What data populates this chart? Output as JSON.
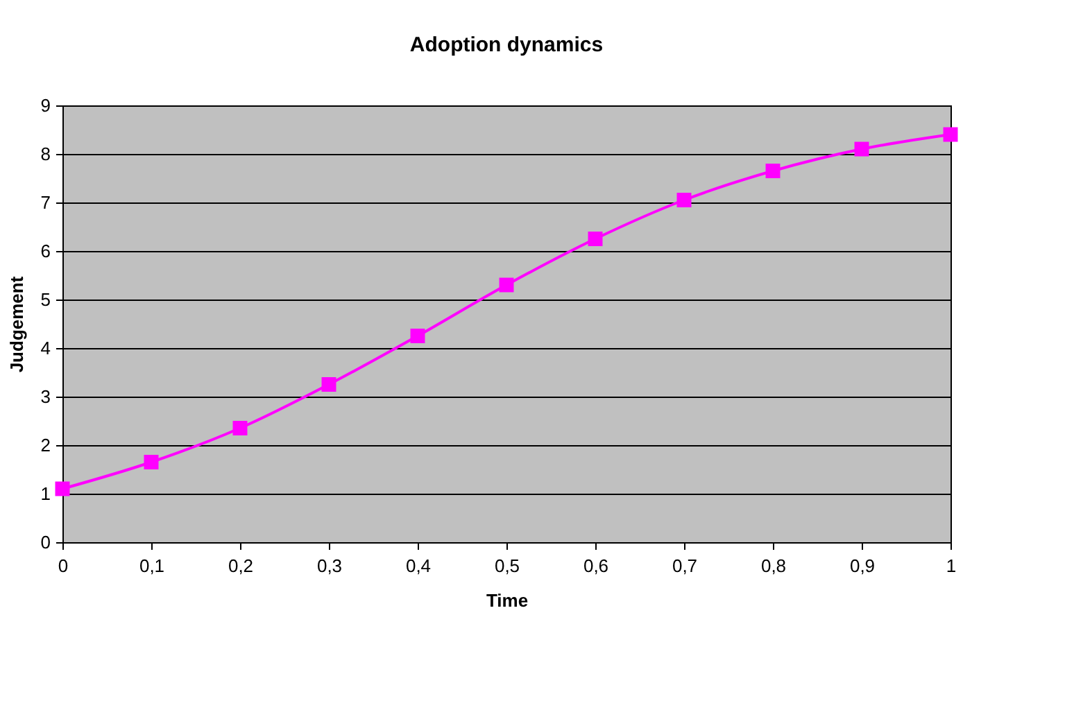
{
  "chart_data": {
    "type": "line",
    "title": "Adoption dynamics",
    "xlabel": "Time",
    "ylabel": "Judgement",
    "x": [
      0,
      0.1,
      0.2,
      0.3,
      0.4,
      0.5,
      0.6,
      0.7,
      0.8,
      0.9,
      1
    ],
    "series": [
      {
        "color": "#ff00ff",
        "values": [
          1.1,
          1.65,
          2.35,
          3.25,
          4.25,
          5.3,
          6.25,
          7.05,
          7.65,
          8.1,
          8.4
        ]
      }
    ],
    "xlim": [
      0,
      1
    ],
    "xticks": [
      0,
      {
        "value": 0.1,
        "label": "0,1"
      },
      {
        "value": 0.2,
        "label": "0,2"
      },
      {
        "value": 0.3,
        "label": "0,3"
      },
      {
        "value": 0.4,
        "label": "0,4"
      },
      {
        "value": 0.5,
        "label": "0,5"
      },
      {
        "value": 0.6,
        "label": "0,6"
      },
      {
        "value": 0.7,
        "label": "0,7"
      },
      {
        "value": 0.8,
        "label": "0,8"
      },
      {
        "value": 0.9,
        "label": "0,9"
      },
      1
    ],
    "ylim": [
      0,
      9
    ],
    "yticks": [
      0,
      1,
      2,
      3,
      4,
      5,
      6,
      7,
      8,
      9
    ],
    "grid": "y",
    "marker": "square",
    "line_style": "solid"
  }
}
